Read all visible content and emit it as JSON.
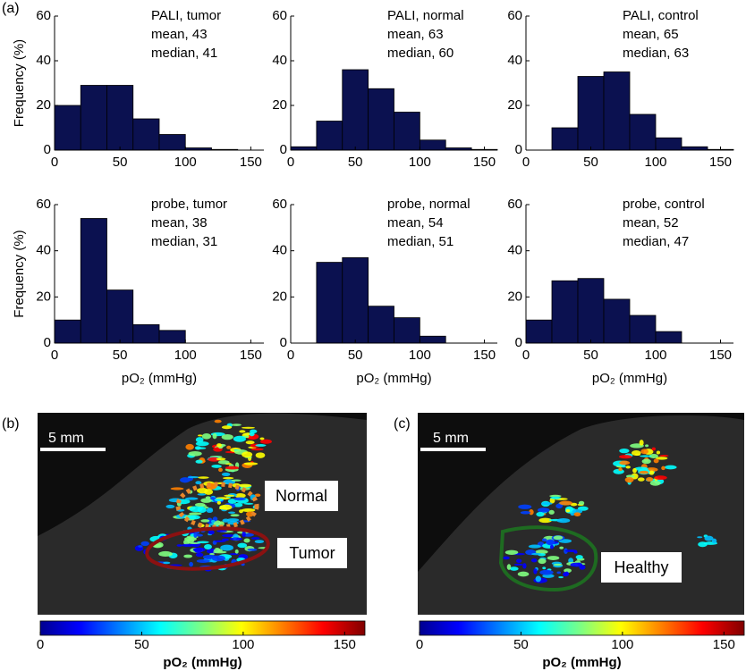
{
  "chart_data": [
    {
      "type": "histogram",
      "bins": [
        0,
        20,
        40,
        60,
        80,
        100,
        120,
        140,
        160
      ],
      "values": [
        20,
        29,
        29,
        14,
        7,
        1,
        0.3,
        0
      ],
      "color": "#0b1150",
      "xlim": [
        0,
        160
      ],
      "ylim": [
        0,
        60
      ],
      "xticks": [
        0,
        50,
        100,
        150
      ],
      "yticks": [
        0,
        20,
        40,
        60
      ],
      "ylabel": "Frequency (%)",
      "annotations": [
        "PALI, tumor",
        "mean, 43",
        "median, 41"
      ]
    },
    {
      "type": "histogram",
      "bins": [
        0,
        20,
        40,
        60,
        80,
        100,
        120,
        140,
        160
      ],
      "values": [
        1.5,
        13,
        36,
        27.5,
        17,
        4.5,
        1,
        0.3
      ],
      "color": "#0b1150",
      "xlim": [
        0,
        160
      ],
      "ylim": [
        0,
        60
      ],
      "xticks": [
        0,
        50,
        100,
        150
      ],
      "yticks": [
        0,
        20,
        40,
        60
      ],
      "annotations": [
        "PALI, normal",
        "mean, 63",
        "median, 60"
      ]
    },
    {
      "type": "histogram",
      "bins": [
        0,
        20,
        40,
        60,
        80,
        100,
        120,
        140,
        160
      ],
      "values": [
        0,
        10,
        33,
        35,
        16,
        5.5,
        1.5,
        0.3
      ],
      "color": "#0b1150",
      "xlim": [
        0,
        160
      ],
      "ylim": [
        0,
        60
      ],
      "xticks": [
        0,
        50,
        100,
        150
      ],
      "yticks": [
        0,
        20,
        40,
        60
      ],
      "annotations": [
        "PALI, control",
        "mean, 65",
        "median, 63"
      ]
    },
    {
      "type": "histogram",
      "bins": [
        0,
        20,
        40,
        60,
        80,
        100
      ],
      "values": [
        10,
        54,
        23,
        8,
        5.5
      ],
      "color": "#0b1150",
      "xlim": [
        0,
        160
      ],
      "ylim": [
        0,
        60
      ],
      "xticks": [
        0,
        50,
        100,
        150
      ],
      "yticks": [
        0,
        20,
        40,
        60
      ],
      "ylabel": "Frequency (%)",
      "xlabel": "pO₂ (mmHg)",
      "annotations": [
        "probe, tumor",
        "mean, 38",
        "median, 31"
      ]
    },
    {
      "type": "histogram",
      "bins": [
        20,
        40,
        60,
        80,
        100,
        120
      ],
      "values": [
        35,
        37,
        16,
        11,
        3
      ],
      "color": "#0b1150",
      "xlim": [
        0,
        160
      ],
      "ylim": [
        0,
        60
      ],
      "xticks": [
        0,
        50,
        100,
        150
      ],
      "yticks": [
        0,
        20,
        40,
        60
      ],
      "xlabel": "pO₂ (mmHg)",
      "annotations": [
        "probe, normal",
        "mean, 54",
        "median, 51"
      ]
    },
    {
      "type": "histogram",
      "bins": [
        0,
        20,
        40,
        60,
        80,
        100,
        120
      ],
      "values": [
        10,
        27,
        28,
        19,
        12,
        5
      ],
      "color": "#0b1150",
      "xlim": [
        0,
        160
      ],
      "ylim": [
        0,
        60
      ],
      "xticks": [
        0,
        50,
        100,
        150
      ],
      "yticks": [
        0,
        20,
        40,
        60
      ],
      "xlabel": "pO₂ (mmHg)",
      "annotations": [
        "probe, control",
        "mean, 52",
        "median, 47"
      ]
    }
  ],
  "panel_a": "(a)",
  "images": [
    {
      "panel": "(b)",
      "scale": "5 mm",
      "regions": [
        "Normal",
        "Tumor"
      ],
      "colorbar": {
        "label": "pO₂ (mmHg)",
        "lim": [
          0,
          160
        ],
        "ticks": [
          0,
          50,
          100,
          150
        ]
      }
    },
    {
      "panel": "(c)",
      "scale": "5 mm",
      "regions": [
        "Healthy"
      ],
      "colorbar": {
        "label": "pO₂ (mmHg)",
        "lim": [
          0,
          160
        ],
        "ticks": [
          0,
          50,
          100,
          150
        ]
      }
    }
  ]
}
